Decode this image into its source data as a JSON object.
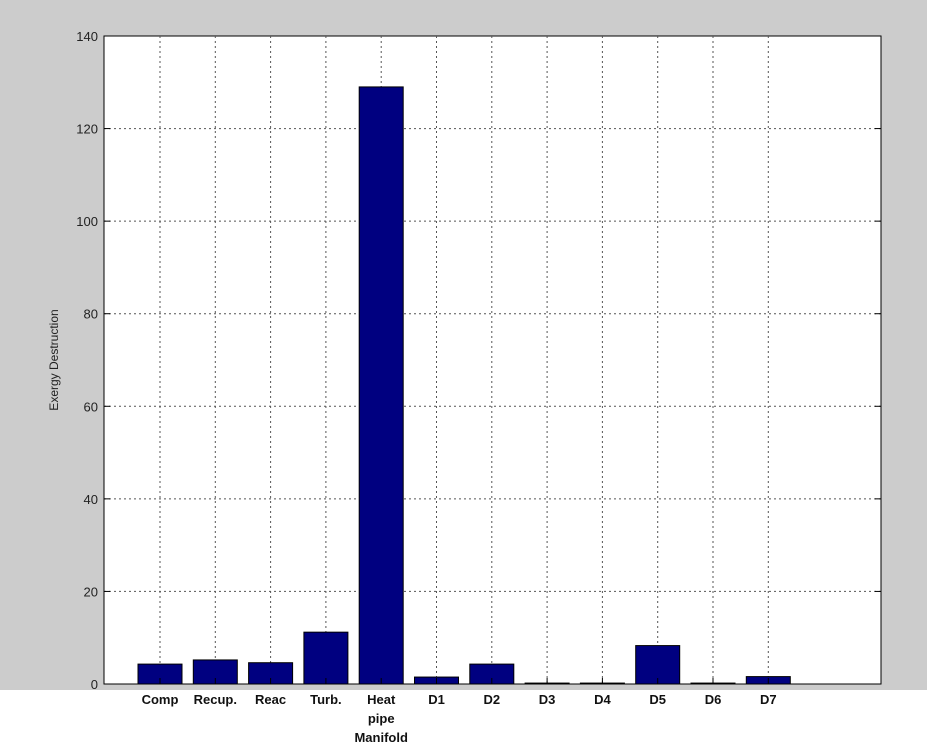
{
  "chart_data": {
    "type": "bar",
    "title": "",
    "xlabel": "",
    "ylabel": "Exergy Destruction",
    "ylim": [
      0,
      140
    ],
    "yticks": [
      0,
      20,
      40,
      60,
      80,
      100,
      120,
      140
    ],
    "grid": true,
    "categories": [
      [
        "Comp"
      ],
      [
        "Recup."
      ],
      [
        "Reac"
      ],
      [
        "Turb."
      ],
      [
        "Heat",
        "pipe",
        "Manifold"
      ],
      [
        "D1"
      ],
      [
        "D2"
      ],
      [
        "D3"
      ],
      [
        "D4"
      ],
      [
        "D5"
      ],
      [
        "D6"
      ],
      [
        "D7"
      ]
    ],
    "values": [
      4.3,
      5.2,
      4.6,
      11.2,
      129,
      1.5,
      4.3,
      0.2,
      0.2,
      8.3,
      0.2,
      1.6
    ],
    "colors": {
      "bar": "#000080",
      "grid": "#555555",
      "frame": "#cccccc"
    }
  }
}
